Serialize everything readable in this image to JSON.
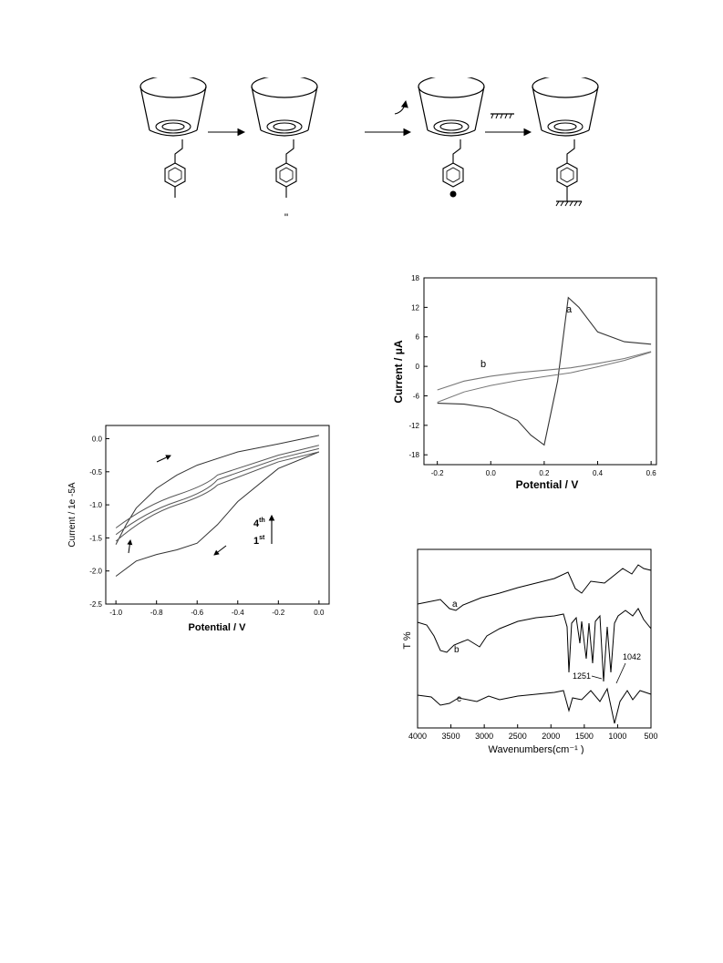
{
  "scheme": {
    "label_step2_mark": "\"",
    "steps": [
      "cyclodextrin-phenyl",
      "cyclodextrin-phenyl-marked",
      "cyclodextrin-phenyl-radical",
      "cyclodextrin-phenyl-grafted"
    ]
  },
  "chart_data": [
    {
      "type": "line",
      "id": "cv-scan",
      "xlabel": "Potential / V",
      "ylabel": "Current / 1e -5A",
      "xlim": [
        -1.05,
        0.05
      ],
      "ylim": [
        -2.5,
        0.2
      ],
      "xticks": [
        "-1.0",
        "-0.8",
        "-0.6",
        "-0.4",
        "-0.2",
        "0.0"
      ],
      "yticks": [
        "0.0",
        "-0.5",
        "-1.0",
        "-1.5",
        "-2.0",
        "-2.5"
      ],
      "annotations": {
        "upper": "4",
        "upper_sup": "th",
        "lower": "1",
        "lower_sup": "st"
      },
      "series": [
        {
          "x": [
            0.0,
            -0.2,
            -0.4,
            -0.5,
            -0.6,
            -0.7,
            -0.8,
            -0.9,
            -1.0
          ],
          "y": [
            -0.2,
            -0.45,
            -0.95,
            -1.3,
            -1.58,
            -1.68,
            -1.75,
            -1.85,
            -2.08
          ]
        },
        {
          "x": [
            -1.0,
            -0.95,
            -0.9,
            -0.8,
            -0.7,
            -0.6,
            -0.4,
            -0.2,
            0.0
          ],
          "y": [
            -1.6,
            -1.3,
            -1.05,
            -0.75,
            -0.55,
            -0.4,
            -0.2,
            -0.08,
            0.05
          ]
        }
      ]
    },
    {
      "type": "line",
      "id": "cv-compare",
      "xlabel": "Potential / V",
      "ylabel": "Current / μA",
      "xlim": [
        -0.25,
        0.62
      ],
      "ylim": [
        -20,
        18
      ],
      "xticks": [
        "-0.2",
        "0.0",
        "0.2",
        "0.4",
        "0.6"
      ],
      "yticks": [
        "18",
        "12",
        "6",
        "0",
        "-6",
        "-12",
        "-18"
      ],
      "series": [
        {
          "name": "a",
          "x": [
            -0.2,
            -0.1,
            0.0,
            0.1,
            0.15,
            0.2,
            0.25,
            0.29,
            0.33,
            0.4,
            0.5,
            0.6
          ],
          "y": [
            -7.5,
            -7.7,
            -8.5,
            -11,
            -14,
            -16,
            -3,
            14,
            12,
            7,
            5,
            4.5
          ]
        },
        {
          "name": "b",
          "x": [
            -0.2,
            -0.1,
            0.0,
            0.1,
            0.2,
            0.3,
            0.4,
            0.5,
            0.6
          ],
          "y": [
            -4.8,
            -3,
            -2,
            -1.3,
            -0.8,
            -0.3,
            0.6,
            1.6,
            3.0
          ]
        }
      ]
    },
    {
      "type": "line",
      "id": "ir-spectra",
      "xlabel": "Wavenumbers(cm⁻¹ )",
      "ylabel": "T %",
      "xlim": [
        4000,
        500
      ],
      "xticks": [
        "4000",
        "3500",
        "3000",
        "2500",
        "2000",
        "1500",
        "1000",
        "500"
      ],
      "annotations": {
        "peak1": "1251",
        "peak2": "1042"
      },
      "series": [
        {
          "name": "a"
        },
        {
          "name": "b"
        },
        {
          "name": "c"
        }
      ]
    }
  ]
}
